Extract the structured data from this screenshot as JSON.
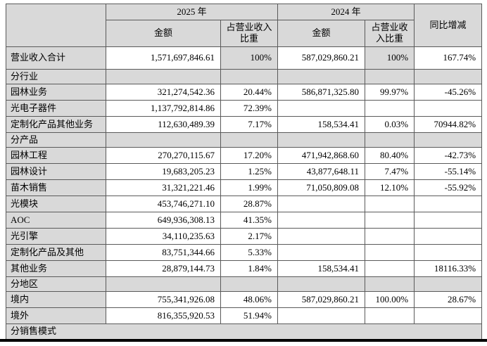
{
  "table": {
    "header": {
      "corner": "",
      "year_2025": "2025 年",
      "year_2024": "2024 年",
      "amount_2025": "金额",
      "pct_2025": "占营业收入比重",
      "amount_2024": "金额",
      "pct_2024": "占营业收入比重",
      "yoy": "同比增减"
    },
    "rows": [
      {
        "type": "data",
        "label": "营业收入合计",
        "amount_2025": "1,571,697,846.61",
        "pct_2025": "100%",
        "amount_2024": "587,029,860.21",
        "pct_2024": "100%",
        "yoy": "167.74%"
      },
      {
        "type": "section",
        "label": "分行业"
      },
      {
        "type": "data",
        "label": "园林业务",
        "amount_2025": "321,274,542.36",
        "pct_2025": "20.44%",
        "amount_2024": "586,871,325.80",
        "pct_2024": "99.97%",
        "yoy": "-45.26%"
      },
      {
        "type": "data",
        "label": "光电子器件",
        "amount_2025": "1,137,792,814.86",
        "pct_2025": "72.39%",
        "amount_2024": "",
        "pct_2024": "",
        "yoy": ""
      },
      {
        "type": "data",
        "label": "定制化产品其他业务",
        "amount_2025": "112,630,489.39",
        "pct_2025": "7.17%",
        "amount_2024": "158,534.41",
        "pct_2024": "0.03%",
        "yoy": "70944.82%"
      },
      {
        "type": "section",
        "label": "分产品"
      },
      {
        "type": "data",
        "label": "园林工程",
        "amount_2025": "270,270,115.67",
        "pct_2025": "17.20%",
        "amount_2024": "471,942,868.60",
        "pct_2024": "80.40%",
        "yoy": "-42.73%"
      },
      {
        "type": "data",
        "label": "园林设计",
        "amount_2025": "19,683,205.23",
        "pct_2025": "1.25%",
        "amount_2024": "43,877,648.11",
        "pct_2024": "7.47%",
        "yoy": "-55.14%"
      },
      {
        "type": "data",
        "label": "苗木销售",
        "amount_2025": "31,321,221.46",
        "pct_2025": "1.99%",
        "amount_2024": "71,050,809.08",
        "pct_2024": "12.10%",
        "yoy": "-55.92%"
      },
      {
        "type": "data",
        "label": "光模块",
        "amount_2025": "453,746,271.10",
        "pct_2025": "28.87%",
        "amount_2024": "",
        "pct_2024": "",
        "yoy": ""
      },
      {
        "type": "data",
        "label": "AOC",
        "amount_2025": "649,936,308.13",
        "pct_2025": "41.35%",
        "amount_2024": "",
        "pct_2024": "",
        "yoy": ""
      },
      {
        "type": "data",
        "label": "光引擎",
        "amount_2025": "34,110,235.63",
        "pct_2025": "2.17%",
        "amount_2024": "",
        "pct_2024": "",
        "yoy": ""
      },
      {
        "type": "data",
        "label": "定制化产品及其他",
        "amount_2025": "83,751,344.66",
        "pct_2025": "5.33%",
        "amount_2024": "",
        "pct_2024": "",
        "yoy": ""
      },
      {
        "type": "data",
        "label": "其他业务",
        "amount_2025": "28,879,144.73",
        "pct_2025": "1.84%",
        "amount_2024": "158,534.41",
        "pct_2024": "",
        "yoy": "18116.33%"
      },
      {
        "type": "section",
        "label": "分地区"
      },
      {
        "type": "data",
        "label": "境内",
        "amount_2025": "755,341,926.08",
        "pct_2025": "48.06%",
        "amount_2024": "587,029,860.21",
        "pct_2024": "100.00%",
        "yoy": "28.67%"
      },
      {
        "type": "data",
        "label": "境外",
        "amount_2025": "816,355,920.53",
        "pct_2025": "51.94%",
        "amount_2024": "",
        "pct_2024": "",
        "yoy": ""
      },
      {
        "type": "section_full",
        "label": "分销售模式"
      }
    ],
    "colors": {
      "shaded_bg": "#d9d9d9",
      "border": "#5a5a5a",
      "text": "#000000",
      "bottom_rule": "#000000"
    }
  }
}
